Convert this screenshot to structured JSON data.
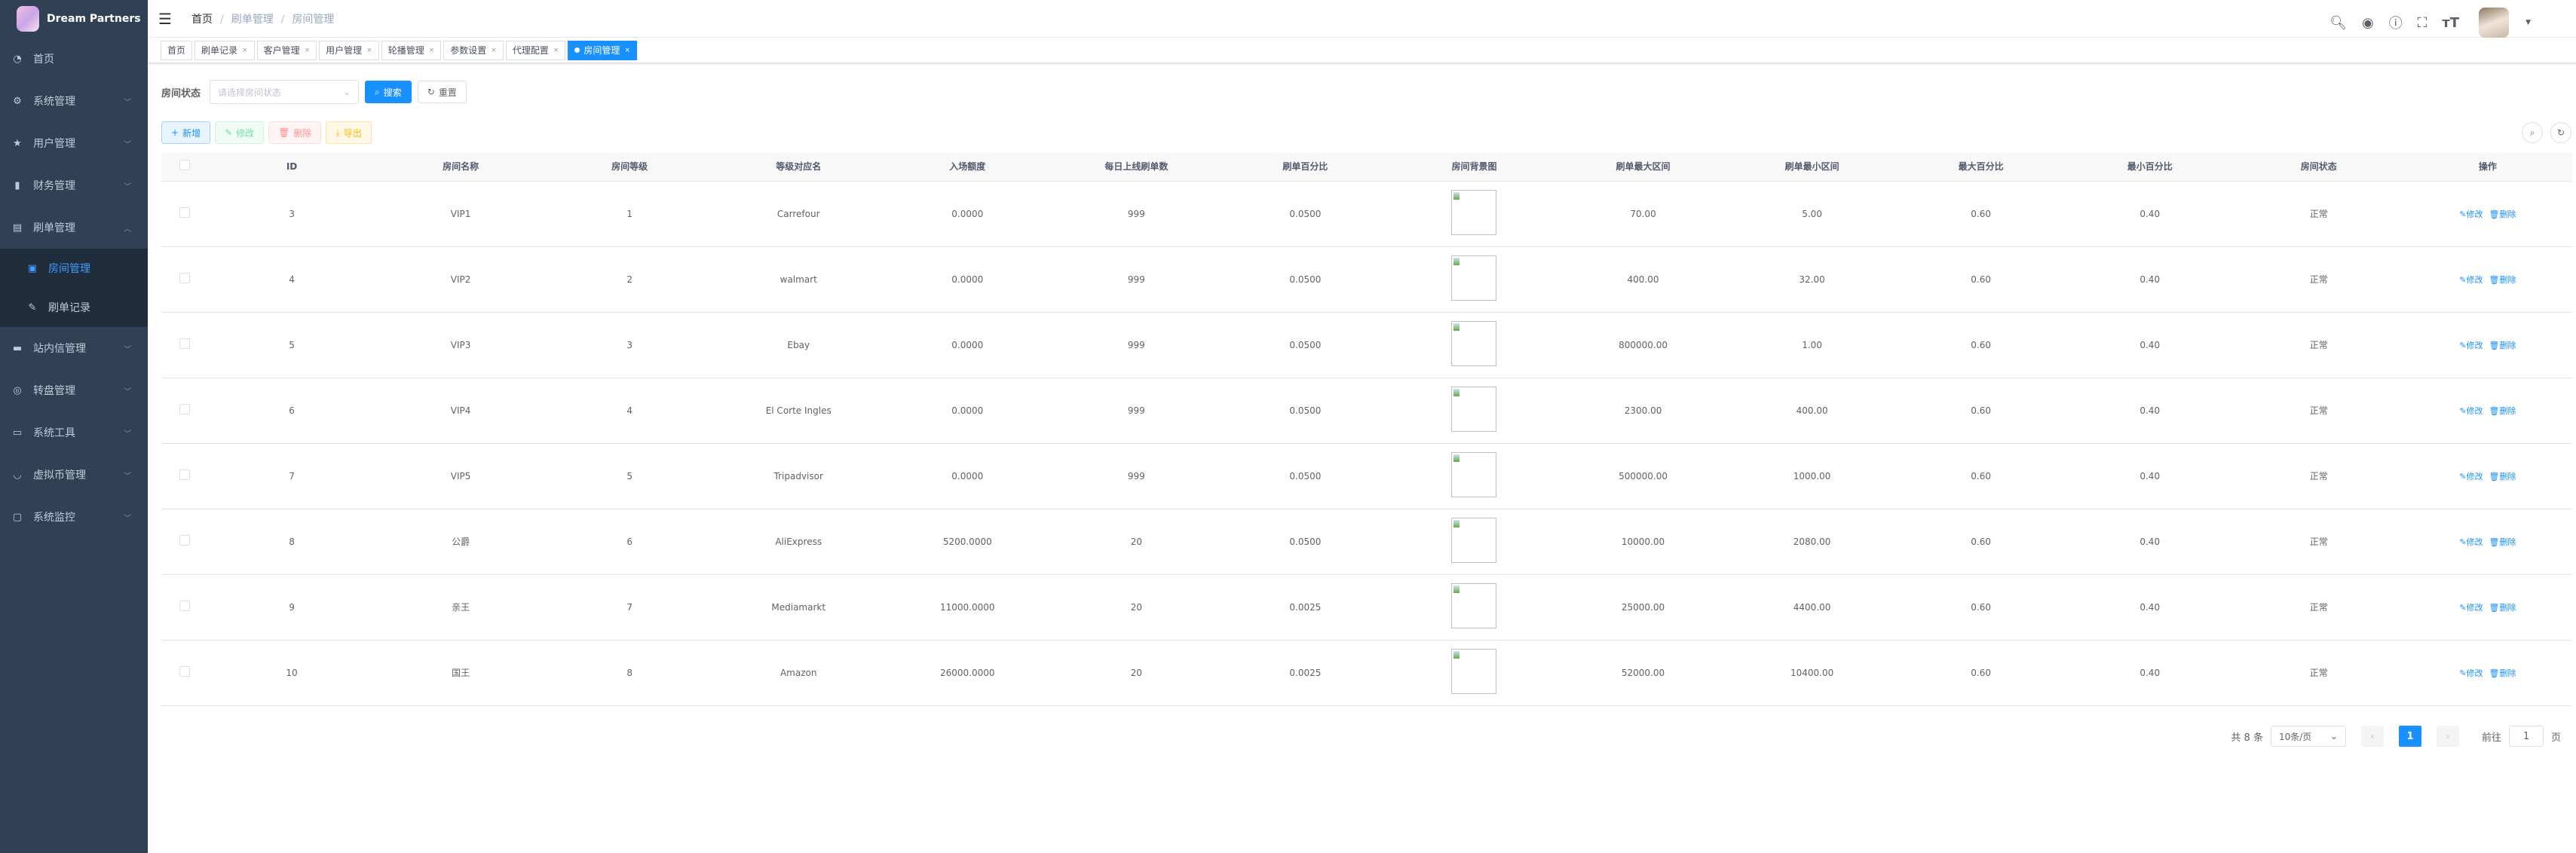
{
  "app": {
    "title": "Dream Partners"
  },
  "sidebar": {
    "items": [
      {
        "label": "首页",
        "icon": "dashboard-icon"
      },
      {
        "label": "系统管理",
        "icon": "gear-icon"
      },
      {
        "label": "用户管理",
        "icon": "star-icon"
      },
      {
        "label": "财务管理",
        "icon": "bar-chart-icon"
      },
      {
        "label": "刷单管理",
        "icon": "document-icon",
        "expanded": true,
        "children": [
          {
            "label": "房间管理",
            "icon": "room-icon",
            "active": true
          },
          {
            "label": "刷单记录",
            "icon": "edit-icon"
          }
        ]
      },
      {
        "label": "站内信管理",
        "icon": "message-icon"
      },
      {
        "label": "转盘管理",
        "icon": "wheel-icon"
      },
      {
        "label": "系统工具",
        "icon": "toolbox-icon"
      },
      {
        "label": "虚拟币管理",
        "icon": "coin-icon"
      },
      {
        "label": "系统监控",
        "icon": "monitor-icon"
      }
    ]
  },
  "header": {
    "breadcrumb": [
      "首页",
      "刷单管理",
      "房间管理"
    ]
  },
  "tags": [
    "首页",
    "刷单记录",
    "客户管理",
    "用户管理",
    "轮播管理",
    "参数设置",
    "代理配置",
    "房间管理"
  ],
  "search": {
    "label": "房间状态",
    "placeholder": "请选择房间状态",
    "search_btn": "搜索",
    "reset_btn": "重置"
  },
  "toolbar": {
    "add": "新增",
    "edit": "修改",
    "delete": "删除",
    "export": "导出"
  },
  "table": {
    "columns": [
      "ID",
      "房间名称",
      "房间等级",
      "等级对应名",
      "入场额度",
      "每日上线刷单数",
      "刷单百分比",
      "房间背景图",
      "刷单最大区间",
      "刷单最小区间",
      "最大百分比",
      "最小百分比",
      "房间状态",
      "操作"
    ],
    "rows": [
      [
        "3",
        "VIP1",
        "1",
        "Carrefour",
        "0.0000",
        "999",
        "0.0500",
        "",
        "70.00",
        "5.00",
        "0.60",
        "0.40",
        "正常"
      ],
      [
        "4",
        "VIP2",
        "2",
        "walmart",
        "0.0000",
        "999",
        "0.0500",
        "",
        "400.00",
        "32.00",
        "0.60",
        "0.40",
        "正常"
      ],
      [
        "5",
        "VIP3",
        "3",
        "Ebay",
        "0.0000",
        "999",
        "0.0500",
        "",
        "800000.00",
        "1.00",
        "0.60",
        "0.40",
        "正常"
      ],
      [
        "6",
        "VIP4",
        "4",
        "El Corte Ingles",
        "0.0000",
        "999",
        "0.0500",
        "",
        "2300.00",
        "400.00",
        "0.60",
        "0.40",
        "正常"
      ],
      [
        "7",
        "VIP5",
        "5",
        "Tripadvisor",
        "0.0000",
        "999",
        "0.0500",
        "",
        "500000.00",
        "1000.00",
        "0.60",
        "0.40",
        "正常"
      ],
      [
        "8",
        "公爵",
        "6",
        "AliExpress",
        "5200.0000",
        "20",
        "0.0500",
        "",
        "10000.00",
        "2080.00",
        "0.60",
        "0.40",
        "正常"
      ],
      [
        "9",
        "亲王",
        "7",
        "Mediamarkt",
        "11000.0000",
        "20",
        "0.0025",
        "",
        "25000.00",
        "4400.00",
        "0.60",
        "0.40",
        "正常"
      ],
      [
        "10",
        "国王",
        "8",
        "Amazon",
        "26000.0000",
        "20",
        "0.0025",
        "",
        "52000.00",
        "10400.00",
        "0.60",
        "0.40",
        "正常"
      ]
    ],
    "row_actions": {
      "edit": "修改",
      "delete": "删除"
    }
  },
  "pagination": {
    "total": "共 8 条",
    "page_size": "10条/页",
    "current": "1",
    "goto_label": "前往",
    "goto_value": "1",
    "page_suffix": "页"
  },
  "colors": {
    "sidebar": "#304156",
    "accent": "#1890ff"
  }
}
